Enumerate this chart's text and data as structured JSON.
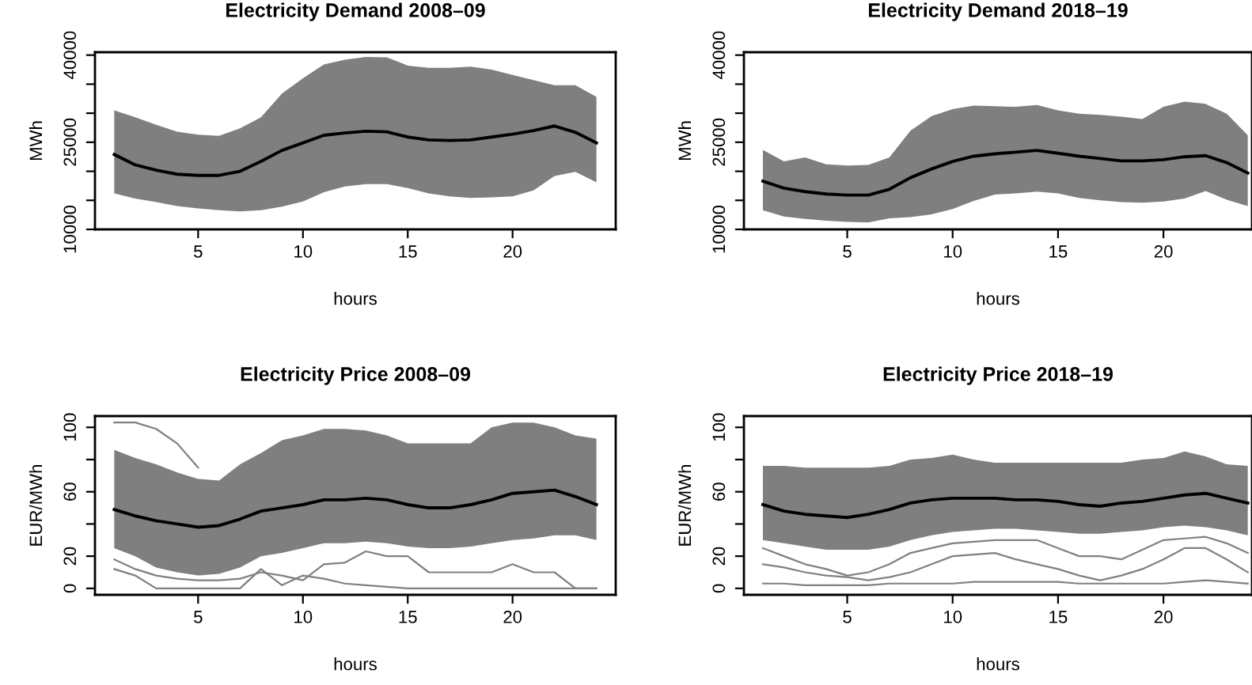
{
  "chart_data": [
    {
      "type": "line",
      "title": "Electricity Demand 2008–09",
      "xlabel": "hours",
      "ylabel": "MWh",
      "x": [
        1,
        2,
        3,
        4,
        5,
        6,
        7,
        8,
        9,
        10,
        11,
        12,
        13,
        14,
        15,
        16,
        17,
        18,
        19,
        20,
        21,
        22,
        23,
        24
      ],
      "xlim": [
        0.08,
        24.92
      ],
      "ylim": [
        10000,
        40500
      ],
      "xticks": [
        5,
        10,
        15,
        20
      ],
      "yticks": [
        10000,
        {
          "value": 15000,
          "label": null
        },
        {
          "value": 20000,
          "label": null
        },
        25000,
        {
          "value": 30000,
          "label": null
        },
        {
          "value": 35000,
          "label": null
        },
        40000
      ],
      "line_style": "solid",
      "grid": false,
      "series": [
        {
          "color": "#000000",
          "values": [
            22900,
            21100,
            20200,
            19500,
            19300,
            19300,
            20000,
            21700,
            23600,
            24900,
            26200,
            26600,
            26900,
            26800,
            25900,
            25400,
            25300,
            25400,
            25900,
            26400,
            27000,
            27800,
            26700,
            24900
          ],
          "lower": [
            16200,
            15300,
            14700,
            14000,
            13600,
            13300,
            13100,
            13300,
            13900,
            14800,
            16400,
            17400,
            17800,
            17800,
            17100,
            16200,
            15700,
            15400,
            15500,
            15700,
            16700,
            19200,
            19900,
            18100
          ],
          "upper": [
            30500,
            29300,
            28000,
            26800,
            26300,
            26100,
            27400,
            29300,
            33400,
            36000,
            38400,
            39200,
            39700,
            39600,
            38200,
            37800,
            37800,
            38000,
            37500,
            36600,
            35700,
            34800,
            34800,
            32800
          ]
        }
      ]
    },
    {
      "type": "line",
      "title": "Electricity Demand 2018–19",
      "xlabel": "hours",
      "ylabel": "MWh",
      "x": [
        1,
        2,
        3,
        4,
        5,
        6,
        7,
        8,
        9,
        10,
        11,
        12,
        13,
        14,
        15,
        16,
        17,
        18,
        19,
        20,
        21,
        22,
        23,
        24
      ],
      "xlim": [
        0.1,
        24.2
      ],
      "ylim": [
        10000,
        40500
      ],
      "xticks": [
        5,
        10,
        15,
        20
      ],
      "yticks": [
        10000,
        {
          "value": 15000,
          "label": null
        },
        {
          "value": 20000,
          "label": null
        },
        25000,
        {
          "value": 30000,
          "label": null
        },
        {
          "value": 35000,
          "label": null
        },
        40000
      ],
      "line_style": "solid",
      "grid": false,
      "series": [
        {
          "color": "#000000",
          "values": [
            18300,
            17100,
            16500,
            16100,
            15900,
            15900,
            16900,
            18900,
            20400,
            21700,
            22600,
            23000,
            23300,
            23600,
            23100,
            22600,
            22200,
            21800,
            21800,
            22000,
            22500,
            22700,
            21500,
            19700
          ],
          "lower": [
            13300,
            12200,
            11800,
            11500,
            11300,
            11200,
            11900,
            12100,
            12600,
            13500,
            14900,
            16000,
            16200,
            16500,
            16200,
            15400,
            15000,
            14700,
            14600,
            14800,
            15300,
            16600,
            15100,
            14000
          ],
          "upper": [
            23700,
            21700,
            22400,
            21200,
            21000,
            21100,
            22400,
            27000,
            29500,
            30700,
            31300,
            31200,
            31100,
            31400,
            30500,
            29900,
            29700,
            29400,
            29000,
            31100,
            32000,
            31600,
            29900,
            26200
          ]
        }
      ]
    },
    {
      "type": "line",
      "title": "Electricity Price 2008–09",
      "xlabel": "hours",
      "ylabel": "EUR/MWh",
      "x": [
        1,
        2,
        3,
        4,
        5,
        6,
        7,
        8,
        9,
        10,
        11,
        12,
        13,
        14,
        15,
        16,
        17,
        18,
        19,
        20,
        21,
        22,
        23,
        24
      ],
      "xlim": [
        0.08,
        24.92
      ],
      "ylim": [
        -4,
        107
      ],
      "xticks": [
        5,
        10,
        15,
        20
      ],
      "yticks": [
        0,
        20,
        {
          "value": 40,
          "label": null
        },
        60,
        {
          "value": 80,
          "label": null
        },
        100
      ],
      "line_style": "solid",
      "grid": false,
      "series": [
        {
          "color": "#808080",
          "values": [
            103,
            103,
            99,
            90,
            75,
            null,
            null,
            null,
            null,
            null,
            null,
            null,
            null,
            null,
            null,
            null,
            null,
            null,
            null,
            null,
            null,
            null,
            null,
            null
          ]
        },
        {
          "color": "#808080",
          "values": [
            12,
            8,
            0,
            0,
            0,
            0,
            0,
            12,
            2,
            8,
            6,
            3,
            2,
            1,
            0,
            0,
            0,
            0,
            0,
            0,
            0,
            0,
            0,
            0
          ]
        },
        {
          "color": "#808080",
          "values": [
            18,
            12,
            8,
            6,
            5,
            5,
            6,
            10,
            8,
            5,
            15,
            16,
            23,
            20,
            20,
            10,
            10,
            10,
            10,
            15,
            10,
            10,
            0,
            0
          ]
        },
        {
          "color": "#000000",
          "values": [
            49,
            45,
            42,
            40,
            38,
            39,
            43,
            48,
            50,
            52,
            55,
            55,
            56,
            55,
            52,
            50,
            50,
            52,
            55,
            59,
            60,
            61,
            57,
            52
          ],
          "lower": [
            25,
            20,
            13,
            10,
            8,
            9,
            13,
            20,
            22,
            25,
            28,
            28,
            29,
            28,
            26,
            25,
            25,
            26,
            28,
            30,
            31,
            33,
            33,
            30
          ],
          "upper": [
            86,
            81,
            77,
            72,
            68,
            67,
            77,
            84,
            92,
            95,
            99,
            99,
            98,
            95,
            90,
            90,
            90,
            90,
            100,
            103,
            103,
            100,
            95,
            93
          ]
        }
      ]
    },
    {
      "type": "line",
      "title": "Electricity Price 2018–19",
      "xlabel": "hours",
      "ylabel": "EUR/MWh",
      "x": [
        1,
        2,
        3,
        4,
        5,
        6,
        7,
        8,
        9,
        10,
        11,
        12,
        13,
        14,
        15,
        16,
        17,
        18,
        19,
        20,
        21,
        22,
        23,
        24
      ],
      "xlim": [
        0.1,
        24.2
      ],
      "ylim": [
        -4,
        107
      ],
      "xticks": [
        5,
        10,
        15,
        20
      ],
      "yticks": [
        0,
        20,
        {
          "value": 40,
          "label": null
        },
        60,
        {
          "value": 80,
          "label": null
        },
        100
      ],
      "line_style": "solid",
      "grid": false,
      "series": [
        {
          "color": "#808080",
          "values": [
            3,
            3,
            2,
            2,
            2,
            2,
            3,
            3,
            3,
            3,
            4,
            4,
            4,
            4,
            4,
            3,
            3,
            3,
            3,
            3,
            4,
            5,
            4,
            3
          ]
        },
        {
          "color": "#808080",
          "values": [
            15,
            13,
            10,
            8,
            7,
            5,
            7,
            10,
            15,
            20,
            21,
            22,
            18,
            15,
            12,
            8,
            5,
            8,
            12,
            18,
            25,
            25,
            18,
            10
          ]
        },
        {
          "color": "#808080",
          "values": [
            25,
            20,
            15,
            12,
            8,
            10,
            15,
            22,
            25,
            28,
            29,
            30,
            30,
            30,
            25,
            20,
            20,
            18,
            24,
            30,
            31,
            32,
            28,
            22
          ]
        },
        {
          "color": "#000000",
          "values": [
            52,
            48,
            46,
            45,
            44,
            46,
            49,
            53,
            55,
            56,
            56,
            56,
            55,
            55,
            54,
            52,
            51,
            53,
            54,
            56,
            58,
            59,
            56,
            53
          ],
          "lower": [
            30,
            28,
            26,
            24,
            24,
            24,
            26,
            30,
            33,
            35,
            36,
            37,
            37,
            36,
            35,
            34,
            34,
            35,
            36,
            38,
            39,
            38,
            36,
            33
          ],
          "upper": [
            76,
            76,
            75,
            75,
            75,
            75,
            76,
            80,
            81,
            83,
            80,
            78,
            78,
            78,
            78,
            78,
            78,
            78,
            80,
            81,
            85,
            82,
            77,
            76
          ]
        }
      ]
    }
  ]
}
